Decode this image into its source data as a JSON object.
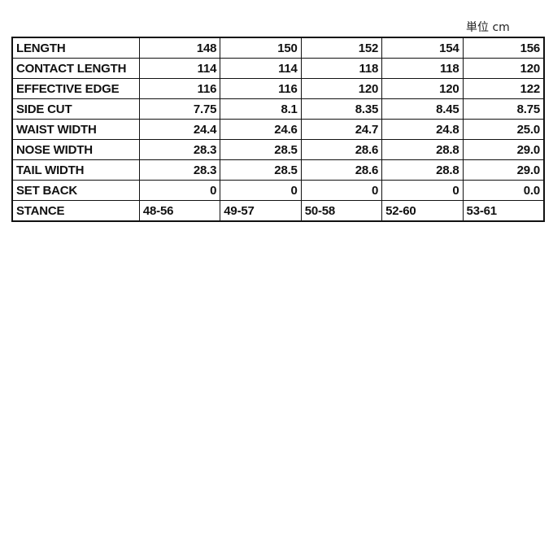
{
  "unit_label": "単位 cm",
  "rows": [
    {
      "label": "LENGTH",
      "values": [
        "148",
        "150",
        "152",
        "154",
        "156"
      ]
    },
    {
      "label": "CONTACT LENGTH",
      "values": [
        "114",
        "114",
        "118",
        "118",
        "120"
      ]
    },
    {
      "label": "EFFECTIVE EDGE",
      "values": [
        "116",
        "116",
        "120",
        "120",
        "122"
      ]
    },
    {
      "label": "SIDE CUT",
      "values": [
        "7.75",
        "8.1",
        "8.35",
        "8.45",
        "8.75"
      ]
    },
    {
      "label": "WAIST WIDTH",
      "values": [
        "24.4",
        "24.6",
        "24.7",
        "24.8",
        "25.0"
      ]
    },
    {
      "label": "NOSE WIDTH",
      "values": [
        "28.3",
        "28.5",
        "28.6",
        "28.8",
        "29.0"
      ]
    },
    {
      "label": "TAIL WIDTH",
      "values": [
        "28.3",
        "28.5",
        "28.6",
        "28.8",
        "29.0"
      ]
    },
    {
      "label": "SET BACK",
      "values": [
        "0",
        "0",
        "0",
        "0",
        "0.0"
      ]
    },
    {
      "label": "STANCE",
      "values": [
        "48-56",
        "49-57",
        "50-58",
        "52-60",
        "53-61"
      ],
      "align": "left"
    }
  ]
}
